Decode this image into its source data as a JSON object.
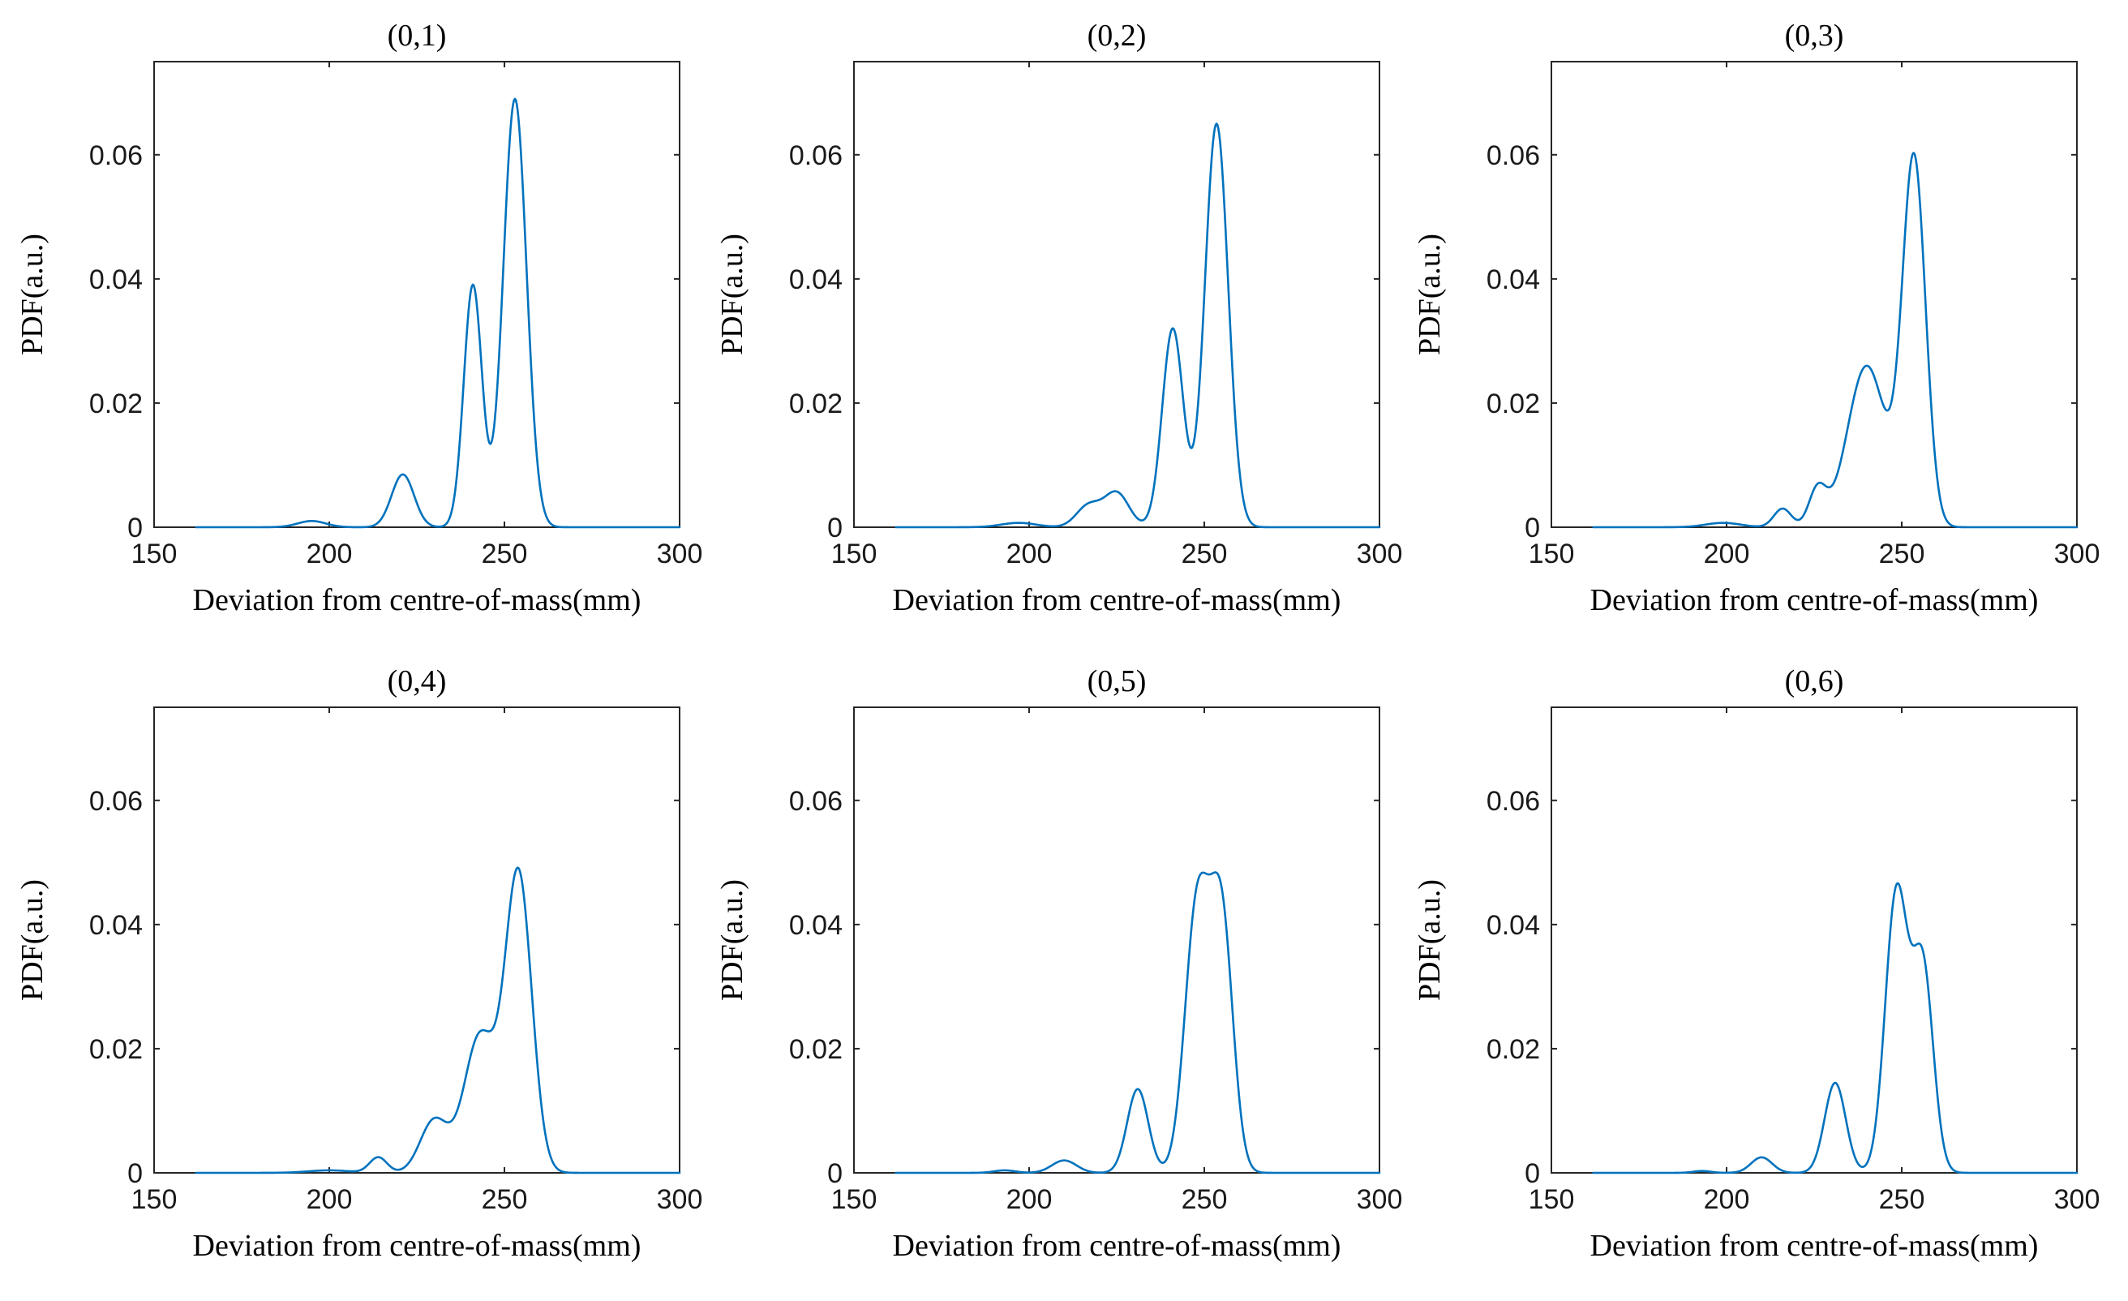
{
  "chart_data": [
    {
      "type": "line",
      "title": "(0,1)",
      "xlabel": "Deviation from centre-of-mass(mm)",
      "ylabel": "PDF(a.u.)",
      "xlim": [
        150,
        300
      ],
      "ylim": [
        0,
        0.075
      ],
      "x_ticks": [
        "150",
        "200",
        "250",
        "300"
      ],
      "y_ticks": [
        "0",
        "0.02",
        "0.04",
        "0.06"
      ],
      "line_color": "#0072BD",
      "x_range": [
        162,
        300
      ],
      "peaks": [
        {
          "mu": 195,
          "amp": 0.001,
          "sigma": 4
        },
        {
          "mu": 221,
          "amp": 0.0085,
          "sigma": 3.2
        },
        {
          "mu": 241,
          "amp": 0.039,
          "sigma": 2.6
        },
        {
          "mu": 253,
          "amp": 0.069,
          "sigma": 3.3
        }
      ]
    },
    {
      "type": "line",
      "title": "(0,2)",
      "xlabel": "Deviation from centre-of-mass(mm)",
      "ylabel": "PDF(a.u.)",
      "xlim": [
        150,
        300
      ],
      "ylim": [
        0,
        0.075
      ],
      "x_ticks": [
        "150",
        "200",
        "250",
        "300"
      ],
      "y_ticks": [
        "0",
        "0.02",
        "0.04",
        "0.06"
      ],
      "line_color": "#0072BD",
      "x_range": [
        162,
        300
      ],
      "peaks": [
        {
          "mu": 197,
          "amp": 0.0007,
          "sigma": 5
        },
        {
          "mu": 217,
          "amp": 0.0035,
          "sigma": 3.5
        },
        {
          "mu": 225,
          "amp": 0.0055,
          "sigma": 3.5
        },
        {
          "mu": 241,
          "amp": 0.032,
          "sigma": 3.0
        },
        {
          "mu": 253.5,
          "amp": 0.065,
          "sigma": 3.3
        }
      ]
    },
    {
      "type": "line",
      "title": "(0,3)",
      "xlabel": "Deviation from centre-of-mass(mm)",
      "ylabel": "PDF(a.u.)",
      "xlim": [
        150,
        300
      ],
      "ylim": [
        0,
        0.075
      ],
      "x_ticks": [
        "150",
        "200",
        "250",
        "300"
      ],
      "y_ticks": [
        "0",
        "0.02",
        "0.04",
        "0.06"
      ],
      "line_color": "#0072BD",
      "x_range": [
        162,
        300
      ],
      "peaks": [
        {
          "mu": 199,
          "amp": 0.0007,
          "sigma": 5
        },
        {
          "mu": 216,
          "amp": 0.003,
          "sigma": 2.5
        },
        {
          "mu": 226,
          "amp": 0.006,
          "sigma": 2.5
        },
        {
          "mu": 240,
          "amp": 0.026,
          "sigma": 5.5
        },
        {
          "mu": 253.5,
          "amp": 0.059,
          "sigma": 3.3
        }
      ]
    },
    {
      "type": "line",
      "title": "(0,4)",
      "xlabel": "Deviation from centre-of-mass(mm)",
      "ylabel": "PDF(a.u.)",
      "xlim": [
        150,
        300
      ],
      "ylim": [
        0,
        0.075
      ],
      "x_ticks": [
        "150",
        "200",
        "250",
        "300"
      ],
      "y_ticks": [
        "0",
        "0.02",
        "0.04",
        "0.06"
      ],
      "line_color": "#0072BD",
      "x_range": [
        162,
        300
      ],
      "peaks": [
        {
          "mu": 200,
          "amp": 0.0004,
          "sigma": 6
        },
        {
          "mu": 214,
          "amp": 0.0025,
          "sigma": 2.5
        },
        {
          "mu": 230,
          "amp": 0.0085,
          "sigma": 4.0
        },
        {
          "mu": 243,
          "amp": 0.022,
          "sigma": 4.5
        },
        {
          "mu": 254,
          "amp": 0.048,
          "sigma": 3.8
        }
      ]
    },
    {
      "type": "line",
      "title": "(0,5)",
      "xlabel": "Deviation from centre-of-mass(mm)",
      "ylabel": "PDF(a.u.)",
      "xlim": [
        150,
        300
      ],
      "ylim": [
        0,
        0.075
      ],
      "x_ticks": [
        "150",
        "200",
        "250",
        "300"
      ],
      "y_ticks": [
        "0",
        "0.02",
        "0.04",
        "0.06"
      ],
      "line_color": "#0072BD",
      "x_range": [
        162,
        300
      ],
      "peaks": [
        {
          "mu": 193,
          "amp": 0.0004,
          "sigma": 3
        },
        {
          "mu": 210,
          "amp": 0.002,
          "sigma": 3.5
        },
        {
          "mu": 231,
          "amp": 0.0135,
          "sigma": 3.0
        },
        {
          "mu": 248,
          "amp": 0.043,
          "sigma": 3.5
        },
        {
          "mu": 255,
          "amp": 0.04,
          "sigma": 3.2
        }
      ]
    },
    {
      "type": "line",
      "title": "(0,6)",
      "xlabel": "Deviation from centre-of-mass(mm)",
      "ylabel": "PDF(a.u.)",
      "xlim": [
        150,
        300
      ],
      "ylim": [
        0,
        0.075
      ],
      "x_ticks": [
        "150",
        "200",
        "250",
        "300"
      ],
      "y_ticks": [
        "0",
        "0.02",
        "0.04",
        "0.06"
      ],
      "line_color": "#0072BD",
      "x_range": [
        162,
        300
      ],
      "peaks": [
        {
          "mu": 193,
          "amp": 0.0003,
          "sigma": 2.5
        },
        {
          "mu": 210,
          "amp": 0.0025,
          "sigma": 3.0
        },
        {
          "mu": 231,
          "amp": 0.0145,
          "sigma": 3.0
        },
        {
          "mu": 248.5,
          "amp": 0.045,
          "sigma": 3.2
        },
        {
          "mu": 256,
          "amp": 0.033,
          "sigma": 3.0
        }
      ]
    }
  ]
}
